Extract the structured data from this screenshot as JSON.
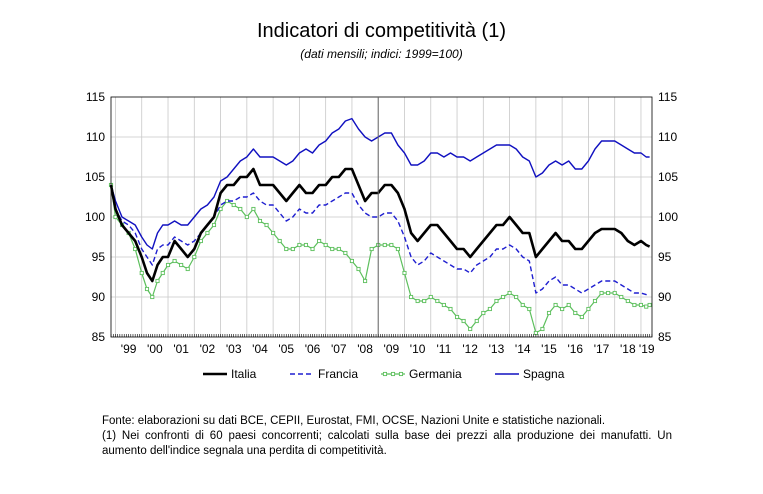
{
  "chart_data": {
    "type": "line",
    "title": "Indicatori di competitività (1)",
    "subtitle": "(dati mensili; indici: 1999=100)",
    "ylim": [
      85,
      115
    ],
    "yticks": [
      85,
      90,
      95,
      100,
      105,
      110,
      115
    ],
    "xlim": [
      1998.83,
      2019.42
    ],
    "xticks": [
      "'99",
      "'00",
      "'01",
      "'02",
      "'03",
      "'04",
      "'05",
      "'06",
      "'07",
      "'08",
      "'09",
      "'10",
      "'11",
      "'12",
      "'13",
      "'14",
      "'15",
      "'16",
      "'17",
      "'18",
      "'19"
    ],
    "xtick_years": [
      1999,
      2000,
      2001,
      2002,
      2003,
      2004,
      2005,
      2006,
      2007,
      2008,
      2009,
      2010,
      2011,
      2012,
      2013,
      2014,
      2015,
      2016,
      2017,
      2018,
      2019
    ],
    "grid": true,
    "legend_position": "bottom",
    "series": [
      {
        "name": "Italia",
        "color": "#000000",
        "style": "solid-thick",
        "x": [
          1998.83,
          1999.0,
          1999.25,
          1999.5,
          1999.75,
          2000.0,
          2000.2,
          2000.4,
          2000.6,
          2000.8,
          2001.0,
          2001.25,
          2001.5,
          2001.75,
          2002.0,
          2002.25,
          2002.5,
          2002.75,
          2003.0,
          2003.25,
          2003.5,
          2003.75,
          2004.0,
          2004.25,
          2004.5,
          2004.75,
          2005.0,
          2005.25,
          2005.5,
          2005.75,
          2006.0,
          2006.25,
          2006.5,
          2006.75,
          2007.0,
          2007.25,
          2007.5,
          2007.75,
          2008.0,
          2008.25,
          2008.5,
          2008.75,
          2009.0,
          2009.25,
          2009.5,
          2009.75,
          2010.0,
          2010.25,
          2010.5,
          2010.75,
          2011.0,
          2011.25,
          2011.5,
          2011.75,
          2012.0,
          2012.25,
          2012.5,
          2012.75,
          2013.0,
          2013.25,
          2013.5,
          2013.75,
          2014.0,
          2014.25,
          2014.5,
          2014.75,
          2015.0,
          2015.25,
          2015.5,
          2015.75,
          2016.0,
          2016.25,
          2016.5,
          2016.75,
          2017.0,
          2017.25,
          2017.5,
          2017.75,
          2018.0,
          2018.25,
          2018.5,
          2018.75,
          2019.0,
          2019.2,
          2019.33
        ],
        "values": [
          104,
          101,
          99,
          98,
          97,
          95,
          93,
          92,
          94,
          95,
          95,
          97,
          96,
          95,
          96,
          98,
          99,
          100,
          103,
          104,
          104,
          105,
          105,
          106,
          104,
          104,
          104,
          103,
          102,
          103,
          104,
          103,
          103,
          104,
          104,
          105,
          105,
          106,
          106,
          104,
          102,
          103,
          103,
          104,
          104,
          103,
          101,
          98,
          97,
          98,
          99,
          99,
          98,
          97,
          96,
          96,
          95,
          96,
          97,
          98,
          99,
          99,
          100,
          99,
          98,
          98,
          95,
          96,
          97,
          98,
          97,
          97,
          96,
          96,
          97,
          98,
          98.5,
          98.5,
          98.5,
          98,
          97,
          96.5,
          97,
          96.5,
          96.3
        ]
      },
      {
        "name": "Francia",
        "color": "#1f1fd0",
        "style": "dashed",
        "x": [
          1998.83,
          1999.0,
          1999.25,
          1999.5,
          1999.75,
          2000.0,
          2000.2,
          2000.4,
          2000.6,
          2000.8,
          2001.0,
          2001.25,
          2001.5,
          2001.75,
          2002.0,
          2002.25,
          2002.5,
          2002.75,
          2003.0,
          2003.25,
          2003.5,
          2003.75,
          2004.0,
          2004.25,
          2004.5,
          2004.75,
          2005.0,
          2005.25,
          2005.5,
          2005.75,
          2006.0,
          2006.25,
          2006.5,
          2006.75,
          2007.0,
          2007.25,
          2007.5,
          2007.75,
          2008.0,
          2008.25,
          2008.5,
          2008.75,
          2009.0,
          2009.25,
          2009.5,
          2009.75,
          2010.0,
          2010.25,
          2010.5,
          2010.75,
          2011.0,
          2011.25,
          2011.5,
          2011.75,
          2012.0,
          2012.25,
          2012.5,
          2012.75,
          2013.0,
          2013.25,
          2013.5,
          2013.75,
          2014.0,
          2014.25,
          2014.5,
          2014.75,
          2015.0,
          2015.25,
          2015.5,
          2015.75,
          2016.0,
          2016.25,
          2016.5,
          2016.75,
          2017.0,
          2017.25,
          2017.5,
          2017.75,
          2018.0,
          2018.25,
          2018.5,
          2018.75,
          2019.0,
          2019.2,
          2019.33
        ],
        "values": [
          104,
          101,
          99.5,
          99,
          98,
          96,
          95,
          94,
          96,
          96.5,
          96.5,
          97.5,
          97,
          96.5,
          97,
          98,
          99,
          100,
          101.5,
          102,
          102,
          102.5,
          102.5,
          103,
          102,
          101.5,
          101.5,
          100.5,
          99.5,
          100,
          101,
          100.5,
          100.5,
          101.5,
          101.5,
          102,
          102.5,
          103,
          103,
          101.5,
          100.5,
          100,
          100,
          100.5,
          100.5,
          99.5,
          97.5,
          95,
          94,
          94.5,
          95.5,
          95,
          94.5,
          94,
          93.5,
          93.5,
          93,
          94,
          94.5,
          95,
          96,
          96,
          96.5,
          96,
          95,
          94.5,
          90.5,
          91,
          92,
          92.5,
          91.5,
          91.5,
          91,
          90.5,
          91,
          91.5,
          92,
          92,
          92,
          91.5,
          91,
          90.5,
          90.5,
          90.3,
          90.2
        ]
      },
      {
        "name": "Germania",
        "color": "#5cbf5c",
        "style": "solid-markers",
        "x": [
          1998.83,
          1999.0,
          1999.25,
          1999.5,
          1999.75,
          2000.0,
          2000.2,
          2000.4,
          2000.6,
          2000.8,
          2001.0,
          2001.25,
          2001.5,
          2001.75,
          2002.0,
          2002.25,
          2002.5,
          2002.75,
          2003.0,
          2003.25,
          2003.5,
          2003.75,
          2004.0,
          2004.25,
          2004.5,
          2004.75,
          2005.0,
          2005.25,
          2005.5,
          2005.75,
          2006.0,
          2006.25,
          2006.5,
          2006.75,
          2007.0,
          2007.25,
          2007.5,
          2007.75,
          2008.0,
          2008.25,
          2008.5,
          2008.75,
          2009.0,
          2009.25,
          2009.5,
          2009.75,
          2010.0,
          2010.25,
          2010.5,
          2010.75,
          2011.0,
          2011.25,
          2011.5,
          2011.75,
          2012.0,
          2012.25,
          2012.5,
          2012.75,
          2013.0,
          2013.25,
          2013.5,
          2013.75,
          2014.0,
          2014.25,
          2014.5,
          2014.75,
          2015.0,
          2015.25,
          2015.5,
          2015.75,
          2016.0,
          2016.25,
          2016.5,
          2016.75,
          2017.0,
          2017.25,
          2017.5,
          2017.75,
          2018.0,
          2018.25,
          2018.5,
          2018.75,
          2019.0,
          2019.2,
          2019.33
        ],
        "values": [
          104,
          100,
          99,
          98,
          96,
          93,
          91,
          90,
          92,
          93,
          94,
          94.5,
          94,
          93.5,
          95,
          97,
          98,
          99,
          101,
          102,
          101.5,
          101,
          100,
          101,
          99.5,
          99,
          98,
          97,
          96,
          96,
          96.5,
          96.5,
          96,
          97,
          96.5,
          96,
          96,
          95.5,
          94.5,
          93.5,
          92,
          96,
          96.5,
          96.5,
          96.5,
          96,
          93,
          90,
          89.5,
          89.5,
          90,
          89.5,
          89,
          88.5,
          87.5,
          87,
          86,
          87,
          88,
          88.5,
          89.5,
          90,
          90.5,
          90,
          89,
          88.5,
          85.5,
          86,
          88,
          89,
          88.5,
          89,
          88,
          87.5,
          88.5,
          89.5,
          90.5,
          90.5,
          90.5,
          90,
          89.5,
          89,
          89,
          88.8,
          89
        ]
      },
      {
        "name": "Spagna",
        "color": "#1010c0",
        "style": "solid",
        "x": [
          1998.83,
          1999.0,
          1999.25,
          1999.5,
          1999.75,
          2000.0,
          2000.2,
          2000.4,
          2000.6,
          2000.8,
          2001.0,
          2001.25,
          2001.5,
          2001.75,
          2002.0,
          2002.25,
          2002.5,
          2002.75,
          2003.0,
          2003.25,
          2003.5,
          2003.75,
          2004.0,
          2004.25,
          2004.5,
          2004.75,
          2005.0,
          2005.25,
          2005.5,
          2005.75,
          2006.0,
          2006.25,
          2006.5,
          2006.75,
          2007.0,
          2007.25,
          2007.5,
          2007.75,
          2008.0,
          2008.25,
          2008.5,
          2008.75,
          2009.0,
          2009.25,
          2009.5,
          2009.75,
          2010.0,
          2010.25,
          2010.5,
          2010.75,
          2011.0,
          2011.25,
          2011.5,
          2011.75,
          2012.0,
          2012.25,
          2012.5,
          2012.75,
          2013.0,
          2013.25,
          2013.5,
          2013.75,
          2014.0,
          2014.25,
          2014.5,
          2014.75,
          2015.0,
          2015.25,
          2015.5,
          2015.75,
          2016.0,
          2016.25,
          2016.5,
          2016.75,
          2017.0,
          2017.25,
          2017.5,
          2017.75,
          2018.0,
          2018.25,
          2018.5,
          2018.75,
          2019.0,
          2019.2,
          2019.33
        ],
        "values": [
          104,
          102,
          100,
          99.5,
          99,
          97.5,
          96.5,
          96,
          98,
          99,
          99,
          99.5,
          99,
          99,
          100,
          101,
          101.5,
          102.5,
          104.5,
          105,
          106,
          107,
          107.5,
          108.5,
          107.5,
          107.5,
          107.5,
          107,
          106.5,
          107,
          108,
          108.5,
          108,
          109,
          109.5,
          110.5,
          111,
          112,
          112.3,
          111,
          110,
          109.5,
          110,
          110.5,
          110.5,
          109,
          108,
          106.5,
          106.5,
          107,
          108,
          108,
          107.5,
          108,
          107.5,
          107.5,
          107,
          107.5,
          108,
          108.5,
          109,
          109,
          109,
          108.5,
          107.5,
          107,
          105,
          105.5,
          106.5,
          107,
          106.5,
          107,
          106,
          106,
          107,
          108.5,
          109.5,
          109.5,
          109.5,
          109,
          108.5,
          108,
          108,
          107.5,
          107.5
        ]
      }
    ]
  },
  "notes": {
    "source": "Fonte: elaborazioni su dati BCE, CEPII, Eurostat, FMI, OCSE, Nazioni Unite e statistiche nazionali.",
    "footnote": "(1) Nei confronti di 60 paesi concorrenti; calcolati sulla base dei prezzi alla produzione dei manufatti.  Un aumento dell'indice segnala una perdita di competitività."
  }
}
